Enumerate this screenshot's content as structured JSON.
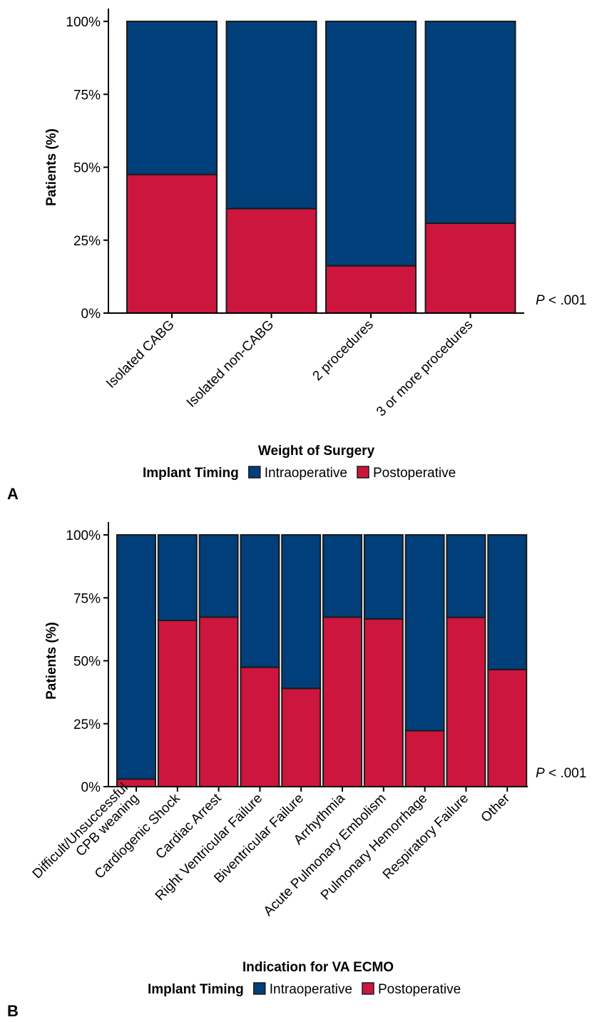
{
  "colors": {
    "intraoperative": "#003f7a",
    "postoperative": "#cc163e",
    "outline": "#1a1a1a"
  },
  "chart_data": [
    {
      "panel": "A",
      "type": "bar",
      "stacked": true,
      "categories": [
        "Isolated CABG",
        "Isolated non-CABG",
        "2 procedures",
        "3 or more procedures"
      ],
      "series": [
        {
          "name": "Postoperative",
          "values": [
            47.5,
            35.8,
            16.2,
            30.8
          ]
        },
        {
          "name": "Intraoperative",
          "values": [
            52.5,
            64.2,
            83.8,
            69.2
          ]
        }
      ],
      "xlabel": "Weight of Surgery",
      "ylabel": "Patients (%)",
      "ylim": [
        0,
        100
      ],
      "yticks": [
        "0%",
        "25%",
        "50%",
        "75%",
        "100%"
      ],
      "legend_title": "Implant Timing",
      "legend_placement": "bottom",
      "annotation": {
        "p": "P",
        "rest": " < .001"
      }
    },
    {
      "panel": "B",
      "type": "bar",
      "stacked": true,
      "categories": [
        [
          "Difficult/Unsuccessful",
          "CPB weaning"
        ],
        [
          "Cardiogenic Shock"
        ],
        [
          "Cardiac Arrest"
        ],
        [
          "Right Ventricular Failure"
        ],
        [
          "Biventricular Failure"
        ],
        [
          "Arrhythmia"
        ],
        [
          "Acute Pulmonary Embolism"
        ],
        [
          "Pulmonary Hemorrhage"
        ],
        [
          "Respiratory Failure"
        ],
        [
          "Other"
        ]
      ],
      "series": [
        {
          "name": "Postoperative",
          "values": [
            3.0,
            66.0,
            67.3,
            47.4,
            39.0,
            67.3,
            66.6,
            22.2,
            67.2,
            46.5
          ]
        },
        {
          "name": "Intraoperative",
          "values": [
            97.0,
            34.0,
            32.7,
            52.6,
            61.0,
            32.7,
            33.4,
            77.8,
            32.8,
            53.5
          ]
        }
      ],
      "xlabel": "Indication for VA ECMO",
      "ylabel": "Patients (%)",
      "ylim": [
        0,
        100
      ],
      "yticks": [
        "0%",
        "25%",
        "50%",
        "75%",
        "100%"
      ],
      "legend_title": "Implant Timing",
      "legend_placement": "bottom",
      "annotation": {
        "p": "P",
        "rest": " < .001"
      }
    }
  ]
}
